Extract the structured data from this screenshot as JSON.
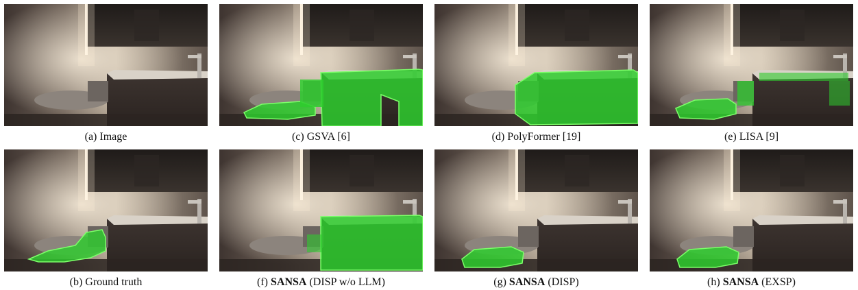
{
  "figure": {
    "panels": [
      {
        "id": "a",
        "overlay": "none",
        "caption_prefix": "(a)",
        "caption_bold": "",
        "caption_text": "Image"
      },
      {
        "id": "c",
        "overlay": "gsva",
        "caption_prefix": "(c)",
        "caption_bold": "",
        "caption_text": "GSVA [6]"
      },
      {
        "id": "d",
        "overlay": "polyformer",
        "caption_prefix": "(d)",
        "caption_bold": "",
        "caption_text": "PolyFormer [19]"
      },
      {
        "id": "e",
        "overlay": "lisa",
        "caption_prefix": "(e)",
        "caption_bold": "",
        "caption_text": "LISA [9]"
      },
      {
        "id": "b",
        "overlay": "gt",
        "caption_prefix": "(b)",
        "caption_bold": "",
        "caption_text": "Ground truth"
      },
      {
        "id": "f",
        "overlay": "sansa_nollm",
        "caption_prefix": "(f)",
        "caption_bold": "SANSA",
        "caption_text": "(DISP w/o LLM)"
      },
      {
        "id": "g",
        "overlay": "sansa_disp",
        "caption_prefix": "(g)",
        "caption_bold": "SANSA",
        "caption_text": "(DISP)"
      },
      {
        "id": "h",
        "overlay": "sansa_exsp",
        "caption_prefix": "(h)",
        "caption_bold": "SANSA",
        "caption_text": "(EXSP)"
      }
    ],
    "colors": {
      "mask": "#2ecc2e",
      "mask_edge": "#7dff6a"
    }
  }
}
